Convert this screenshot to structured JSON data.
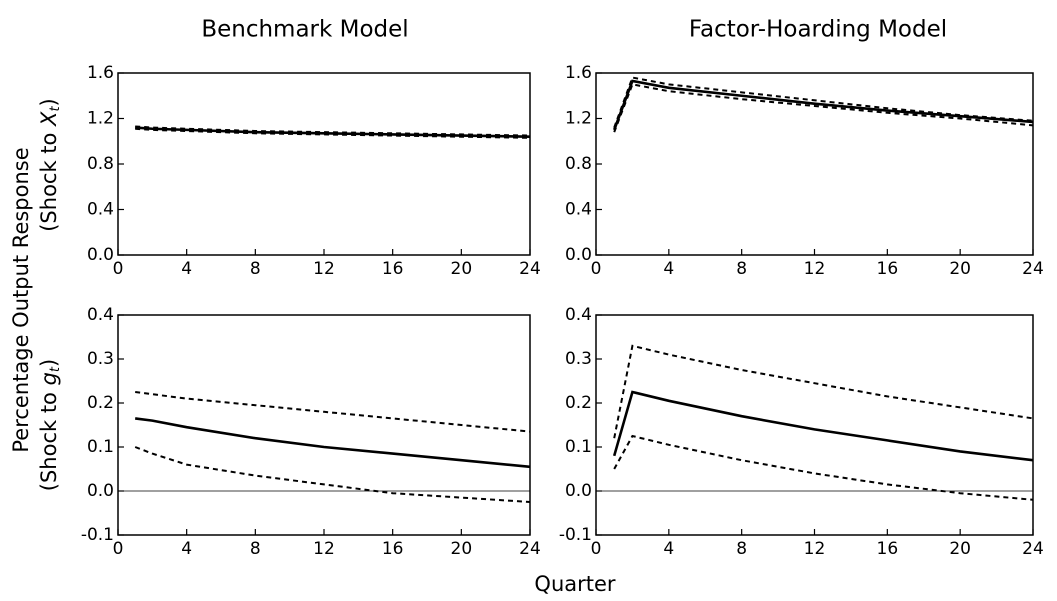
{
  "column_titles": [
    "Benchmark Model",
    "Factor-Hoarding Model"
  ],
  "ylabel": "Percentage Output Response",
  "row_labels": [
    [
      "(Shock to ",
      "X",
      "t",
      ")"
    ],
    [
      "(Shock to ",
      "g",
      "t",
      ")"
    ]
  ],
  "xlabel": "Quarter",
  "chart_data": [
    {
      "type": "line",
      "x": [
        1,
        2,
        4,
        8,
        12,
        16,
        20,
        24
      ],
      "xlim": [
        0,
        24
      ],
      "xticks": [
        0,
        4,
        8,
        12,
        16,
        20,
        24
      ],
      "ylim": [
        0,
        1.6
      ],
      "yticks": [
        {
          "value": 0,
          "label": "0.0"
        },
        0.4,
        0.8,
        1.2,
        1.6
      ],
      "series": [
        {
          "color": "#000",
          "style": "solid",
          "values": [
            1.12,
            1.11,
            1.1,
            1.08,
            1.07,
            1.06,
            1.05,
            1.04
          ]
        },
        {
          "color": "#000",
          "style": "dashed",
          "values": [
            1.13,
            1.12,
            1.11,
            1.09,
            1.08,
            1.07,
            1.06,
            1.05
          ]
        },
        {
          "color": "#000",
          "style": "dashed",
          "values": [
            1.11,
            1.1,
            1.09,
            1.07,
            1.06,
            1.05,
            1.04,
            1.03
          ]
        }
      ]
    },
    {
      "type": "line",
      "x": [
        1,
        2,
        4,
        8,
        12,
        16,
        20,
        24
      ],
      "xlim": [
        0,
        24
      ],
      "xticks": [
        0,
        4,
        8,
        12,
        16,
        20,
        24
      ],
      "ylim": [
        0,
        1.6
      ],
      "yticks": [
        {
          "value": 0,
          "label": "0.0"
        },
        0.4,
        0.8,
        1.2,
        1.6
      ],
      "series": [
        {
          "color": "#000",
          "style": "solid",
          "values": [
            1.1,
            1.53,
            1.47,
            1.4,
            1.33,
            1.27,
            1.22,
            1.17
          ]
        },
        {
          "color": "#000",
          "style": "dashed",
          "values": [
            1.12,
            1.56,
            1.5,
            1.43,
            1.36,
            1.29,
            1.23,
            1.18
          ]
        },
        {
          "color": "#000",
          "style": "dashed",
          "values": [
            1.08,
            1.5,
            1.44,
            1.37,
            1.31,
            1.25,
            1.2,
            1.14
          ]
        }
      ]
    },
    {
      "type": "line",
      "x": [
        1,
        2,
        4,
        8,
        12,
        16,
        20,
        24
      ],
      "xlim": [
        0,
        24
      ],
      "xticks": [
        0,
        4,
        8,
        12,
        16,
        20,
        24
      ],
      "ylim": [
        -0.1,
        0.4
      ],
      "yticks": [
        -0.1,
        {
          "value": 0,
          "label": "0.0"
        },
        0.1,
        0.2,
        0.3,
        0.4
      ],
      "zero_line": true,
      "series": [
        {
          "color": "#000",
          "style": "solid",
          "values": [
            0.165,
            0.16,
            0.145,
            0.12,
            0.1,
            0.085,
            0.07,
            0.055
          ]
        },
        {
          "color": "#000",
          "style": "dashed",
          "values": [
            0.225,
            0.22,
            0.21,
            0.195,
            0.18,
            0.165,
            0.15,
            0.135
          ]
        },
        {
          "color": "#000",
          "style": "dashed",
          "values": [
            0.1,
            0.085,
            0.06,
            0.035,
            0.015,
            -0.005,
            -0.015,
            -0.025
          ]
        }
      ]
    },
    {
      "type": "line",
      "x": [
        1,
        2,
        4,
        8,
        12,
        16,
        20,
        24
      ],
      "xlim": [
        0,
        24
      ],
      "xticks": [
        0,
        4,
        8,
        12,
        16,
        20,
        24
      ],
      "ylim": [
        -0.1,
        0.4
      ],
      "yticks": [
        -0.1,
        {
          "value": 0,
          "label": "0.0"
        },
        0.1,
        0.2,
        0.3,
        0.4
      ],
      "zero_line": true,
      "series": [
        {
          "color": "#000",
          "style": "solid",
          "values": [
            0.08,
            0.225,
            0.205,
            0.17,
            0.14,
            0.115,
            0.09,
            0.07
          ]
        },
        {
          "color": "#000",
          "style": "dashed",
          "values": [
            0.12,
            0.33,
            0.31,
            0.275,
            0.245,
            0.215,
            0.19,
            0.165
          ]
        },
        {
          "color": "#000",
          "style": "dashed",
          "values": [
            0.05,
            0.125,
            0.105,
            0.07,
            0.04,
            0.015,
            -0.005,
            -0.02
          ]
        }
      ]
    }
  ]
}
